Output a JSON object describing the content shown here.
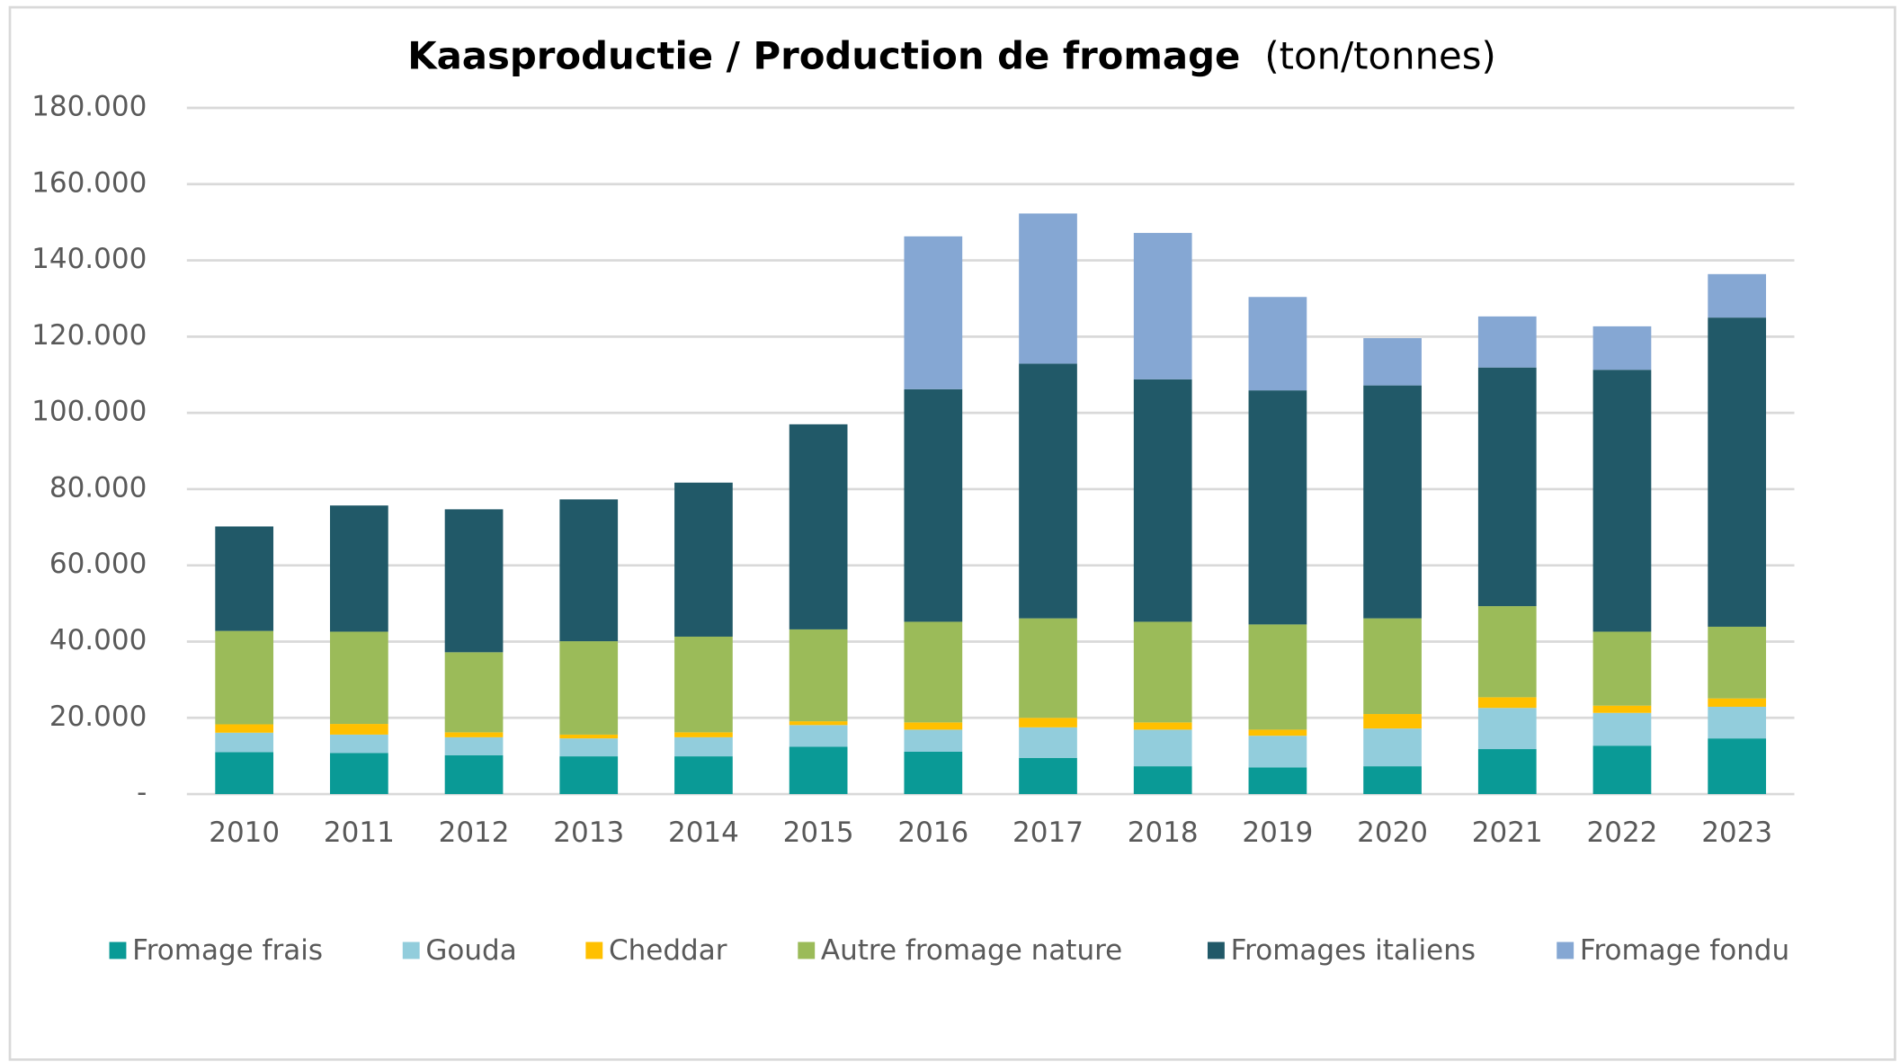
{
  "chart_data": {
    "type": "stacked_bar",
    "title": "Kaasproductie / Production de fromage",
    "unit": "(ton/tonnes)",
    "categories": [
      "2010",
      "2011",
      "2012",
      "2013",
      "2014",
      "2015",
      "2016",
      "2017",
      "2018",
      "2019",
      "2020",
      "2021",
      "2022",
      "2023"
    ],
    "series": [
      {
        "name": "Fromage frais",
        "color": "#0a9a96",
        "values": [
          11000,
          10800,
          10200,
          9900,
          9900,
          12400,
          11100,
          9500,
          7300,
          7000,
          7300,
          11800,
          12700,
          14600
        ]
      },
      {
        "name": "Gouda",
        "color": "#92cddc",
        "values": [
          5100,
          4800,
          4700,
          4700,
          5000,
          5700,
          5800,
          8000,
          9600,
          8300,
          9900,
          10800,
          8600,
          8300
        ]
      },
      {
        "name": "Cheddar",
        "color": "#ffc000",
        "values": [
          2200,
          2800,
          1300,
          1000,
          1300,
          1000,
          1900,
          2500,
          1900,
          1600,
          3800,
          2800,
          1900,
          2200
        ]
      },
      {
        "name": "Autre fromage nature",
        "color": "#9bbb59",
        "values": [
          24500,
          24200,
          21000,
          24500,
          25100,
          24100,
          26400,
          26100,
          26400,
          27600,
          25100,
          23900,
          19400,
          18800
        ]
      },
      {
        "name": "Fromages italiens",
        "color": "#215968",
        "values": [
          27400,
          33100,
          37500,
          37200,
          40400,
          53800,
          61000,
          66800,
          63600,
          61400,
          61100,
          62600,
          68700,
          81100
        ]
      },
      {
        "name": "Fromage fondu",
        "color": "#85a7d3",
        "values": [
          0,
          0,
          0,
          0,
          0,
          0,
          40100,
          39400,
          38400,
          24500,
          12400,
          13400,
          11400,
          11400
        ]
      }
    ],
    "ylim": [
      0,
      180000
    ],
    "yticks": [
      {
        "value": 0,
        "label": "-"
      },
      {
        "value": 20000,
        "label": "20.000"
      },
      {
        "value": 40000,
        "label": "40.000"
      },
      {
        "value": 60000,
        "label": "60.000"
      },
      {
        "value": 80000,
        "label": "80.000"
      },
      {
        "value": 100000,
        "label": "100.000"
      },
      {
        "value": 120000,
        "label": "120.000"
      },
      {
        "value": 140000,
        "label": "140.000"
      },
      {
        "value": 160000,
        "label": "160.000"
      },
      {
        "value": 180000,
        "label": "180.000"
      }
    ],
    "grid": true,
    "legend": "bottom"
  }
}
